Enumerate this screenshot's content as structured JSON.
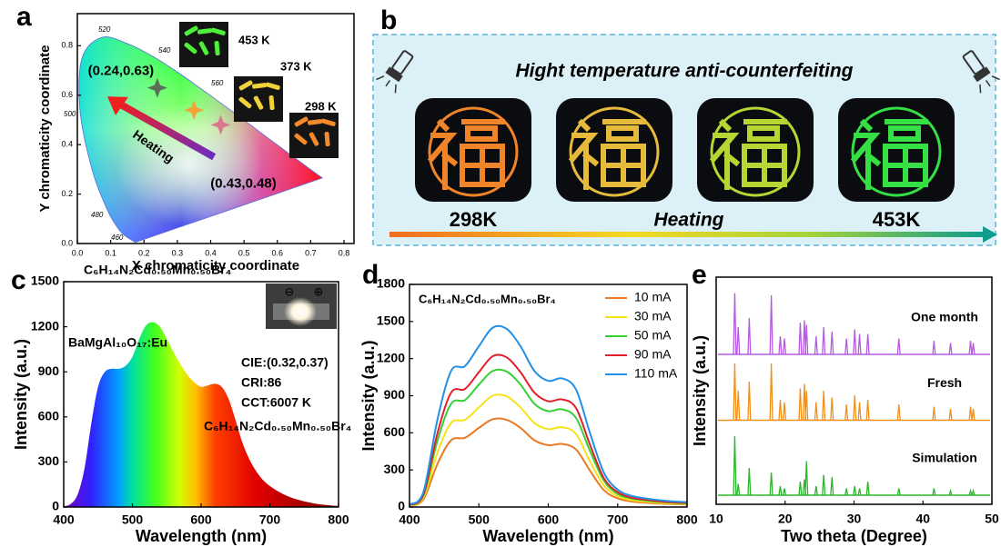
{
  "chart_data": [
    {
      "type": "chromaticity",
      "panel_label": "a",
      "xlabel": "X chromaticity coordinate",
      "ylabel": "Y chromaticity coordinate",
      "xlim": [
        0,
        0.83
      ],
      "ylim": [
        0,
        0.93
      ],
      "xticks": [
        {
          "value": 0,
          "label": "0.0"
        },
        0.1,
        0.2,
        0.3,
        0.4,
        0.5,
        0.6,
        0.7,
        0.8
      ],
      "yticks": [
        {
          "value": 0,
          "label": "0.0"
        },
        0.2,
        0.4,
        0.6,
        0.8
      ],
      "wavelength_labels": [
        520,
        540,
        560,
        500,
        480,
        460
      ],
      "points": {
        "x": [
          0.24,
          0.35,
          0.43
        ],
        "y": [
          0.63,
          0.54,
          0.48
        ],
        "colors": [
          "#5a6e58",
          "#f2a43a",
          "#d9788e"
        ]
      },
      "point_labels": [
        "(0.24,0.63)",
        null,
        "(0.43,0.48)"
      ],
      "arrow_label": "Heating",
      "photo_labels": [
        "453 K",
        "373 K",
        "298 K"
      ]
    },
    {
      "type": "image-panel",
      "panel_label": "b",
      "title": "Hight temperature anti-counterfeiting",
      "start_label": "298K",
      "arrow_label": "Heating",
      "end_label": "453K"
    },
    {
      "type": "area",
      "panel_label": "c",
      "xlabel": "Wavelength (nm)",
      "ylabel": "Intensity (a.u.)",
      "x": [
        400,
        410,
        420,
        430,
        440,
        450,
        460,
        470,
        480,
        490,
        500,
        510,
        520,
        530,
        540,
        550,
        560,
        570,
        580,
        590,
        600,
        610,
        620,
        630,
        640,
        650,
        660,
        670,
        680,
        690,
        700,
        710,
        720,
        730,
        740,
        750,
        760,
        770,
        780,
        790,
        800
      ],
      "values": [
        5,
        20,
        80,
        250,
        550,
        800,
        900,
        920,
        920,
        940,
        1000,
        1120,
        1210,
        1230,
        1200,
        1120,
        1030,
        950,
        880,
        830,
        800,
        810,
        820,
        800,
        720,
        580,
        430,
        320,
        240,
        180,
        140,
        110,
        85,
        65,
        50,
        38,
        28,
        20,
        14,
        10,
        7
      ],
      "xlim": [
        400,
        800
      ],
      "ylim": [
        0,
        1500
      ],
      "xticks": [
        400,
        500,
        600,
        700,
        800
      ],
      "yticks": [
        0,
        300,
        600,
        900,
        1200,
        1500
      ],
      "annotations": [
        "C₆H₁₄N₂Cd₀.₅₀Mn₀.₅₀Br₄",
        "BaMgAl₁₀O₁₇:Eu",
        "CIE:(0.32,0.37)",
        "CRI:86",
        "CCT:6007 K",
        "C₆H₁₄N₂Cd₀.₅₀Mn₀.₅₀Br₄"
      ],
      "annotation_colors": [
        "#3fd03f",
        "#2f5cff",
        "#000000",
        "#000000",
        "#000000",
        "#e8204c"
      ],
      "inset_labels": [
        "⊖",
        "⊕"
      ]
    },
    {
      "type": "line",
      "panel_label": "d",
      "title": "C₆H₁₄N₂Cd₀.₅₀Mn₀.₅₀Br₄",
      "xlabel": "Wavelength (nm)",
      "ylabel": "Intensity (a.u.)",
      "x": [
        400,
        420,
        440,
        460,
        480,
        500,
        520,
        540,
        560,
        580,
        600,
        620,
        640,
        660,
        680,
        700,
        720,
        740,
        760,
        780,
        800
      ],
      "series": [
        {
          "name": "10 mA",
          "color": "#ea7a24",
          "values": [
            10,
            60,
            345,
            540,
            560,
            640,
            710,
            705,
            640,
            540,
            500,
            510,
            465,
            295,
            137,
            70,
            45,
            35,
            28,
            23,
            20
          ]
        },
        {
          "name": "30 mA",
          "color": "#f7e21a",
          "values": [
            12,
            75,
            435,
            680,
            705,
            805,
            900,
            895,
            805,
            680,
            630,
            645,
            590,
            370,
            175,
            87,
            56,
            43,
            34,
            28,
            25
          ]
        },
        {
          "name": "50 mA",
          "color": "#35d035",
          "values": [
            15,
            90,
            530,
            835,
            865,
            990,
            1100,
            1095,
            990,
            835,
            775,
            790,
            720,
            455,
            215,
            105,
            70,
            53,
            42,
            34,
            30
          ]
        },
        {
          "name": "90 mA",
          "color": "#e2202c",
          "values": [
            17,
            100,
            590,
            925,
            955,
            1090,
            1220,
            1210,
            1090,
            925,
            855,
            870,
            800,
            505,
            235,
            120,
            75,
            60,
            46,
            38,
            34
          ]
        },
        {
          "name": "110 mA",
          "color": "#2290e6",
          "values": [
            20,
            120,
            700,
            1100,
            1140,
            1300,
            1450,
            1440,
            1300,
            1100,
            1020,
            1040,
            950,
            600,
            280,
            140,
            90,
            70,
            55,
            45,
            40
          ]
        }
      ],
      "xlim": [
        400,
        800
      ],
      "ylim": [
        0,
        1800
      ],
      "xticks": [
        400,
        500,
        600,
        700,
        800
      ],
      "yticks": [
        0,
        300,
        600,
        900,
        1200,
        1500,
        1800
      ],
      "legend": "upper right"
    },
    {
      "type": "xrd",
      "panel_label": "e",
      "xlabel": "Two theta (Degree)",
      "ylabel": "Intensity (a.u.)",
      "peaks": [
        12.7,
        13.2,
        14.8,
        18.0,
        19.3,
        19.9,
        22.2,
        22.8,
        23.1,
        24.5,
        25.6,
        26.8,
        28.9,
        30.1,
        30.8,
        32.0,
        36.5,
        41.6,
        44.0,
        46.9,
        47.3
      ],
      "series": [
        {
          "name": "One month",
          "color": "#b65be0",
          "baseline": 6.6,
          "values": [
            9.3,
            7.8,
            8.2,
            9.2,
            7.4,
            7.3,
            8.0,
            8.1,
            7.9,
            7.4,
            7.8,
            7.6,
            7.3,
            7.7,
            7.5,
            7.5,
            7.3,
            7.2,
            7.1,
            7.2,
            7.1
          ]
        },
        {
          "name": "Fresh",
          "color": "#f0901a",
          "baseline": 3.7,
          "values": [
            6.2,
            5.0,
            5.4,
            6.2,
            4.6,
            4.5,
            5.1,
            5.3,
            5.0,
            4.5,
            5.0,
            4.7,
            4.4,
            4.8,
            4.5,
            4.6,
            4.4,
            4.3,
            4.2,
            4.3,
            4.2
          ]
        },
        {
          "name": "Simulation",
          "color": "#2bb52b",
          "baseline": 0.4,
          "values": [
            3.0,
            0.9,
            1.6,
            1.4,
            0.8,
            0.7,
            1.0,
            1.1,
            1.9,
            0.8,
            1.3,
            1.2,
            0.7,
            0.8,
            0.7,
            1.0,
            0.7,
            0.7,
            0.6,
            0.6,
            0.6
          ]
        }
      ],
      "xlim": [
        10,
        50
      ],
      "ylim": [
        0,
        10
      ],
      "xticks": [
        10,
        20,
        30,
        40,
        50
      ]
    }
  ]
}
